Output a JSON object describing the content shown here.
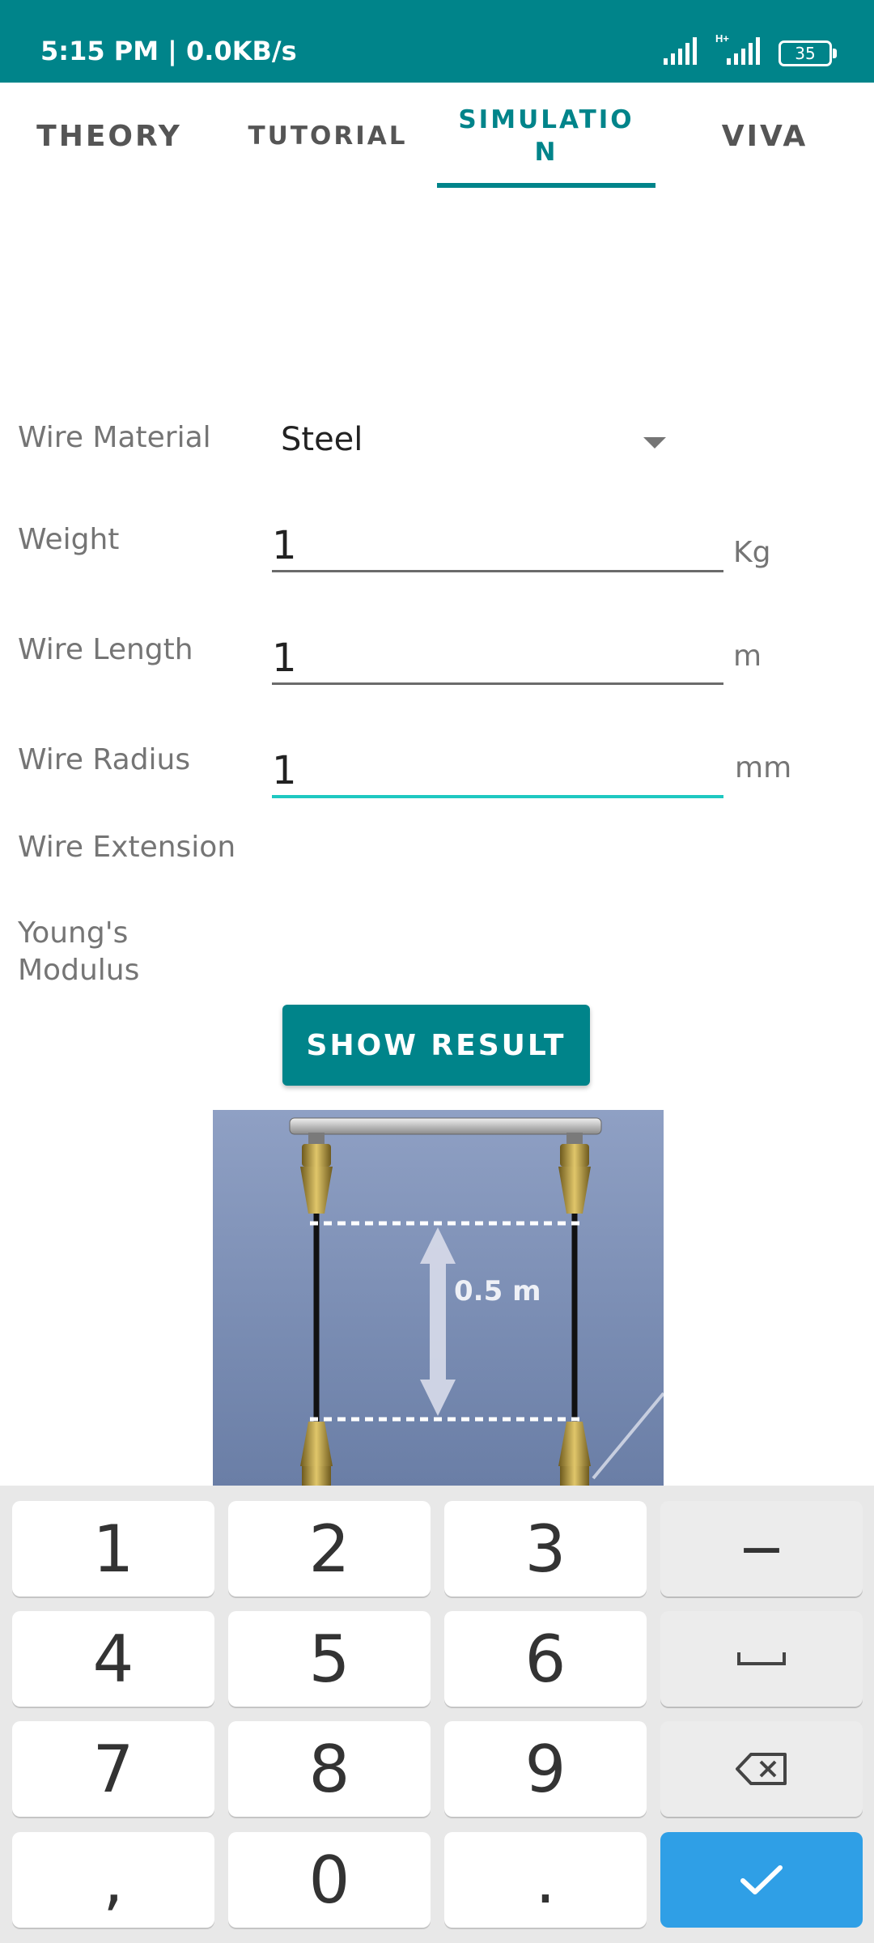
{
  "status_bar": {
    "time": "5:15 PM | 0.0KB/s",
    "network": "H+",
    "battery": "35",
    "icons": [
      "signal-icon",
      "signal-hplus-icon",
      "battery-icon"
    ]
  },
  "tabs": [
    {
      "label": "THEORY",
      "active": false
    },
    {
      "label": "TUTORIAL",
      "active": false
    },
    {
      "label_line1": "SIMULATIO",
      "label_line2": "N",
      "active": true
    },
    {
      "label": "VIVA",
      "active": false
    }
  ],
  "form": {
    "material_label": "Wire Material",
    "material_value": "Steel",
    "weight_label": "Weight",
    "weight_value": "1",
    "weight_unit": "Kg",
    "length_label": "Wire Length",
    "length_value": "1",
    "length_unit": "m",
    "radius_label": "Wire Radius",
    "radius_value": "1",
    "radius_unit": "mm",
    "extension_label": "Wire Extension",
    "youngs_label_line1": "Young's",
    "youngs_label_line2": "Modulus"
  },
  "show_result_label": "SHOW RESULT",
  "simulation": {
    "distance_label": "0.5 m"
  },
  "keyboard": {
    "row1": [
      "1",
      "2",
      "3",
      "−"
    ],
    "row2": [
      "4",
      "5",
      "6",
      "space-icon"
    ],
    "row3": [
      "7",
      "8",
      "9",
      "backspace-icon"
    ],
    "row4": [
      ",",
      "0",
      ".",
      "enter-check-icon"
    ],
    "colors": {
      "enter": "#2f9fe6",
      "accent": "#00848a",
      "focus_underline": "#1fc8c1"
    }
  }
}
